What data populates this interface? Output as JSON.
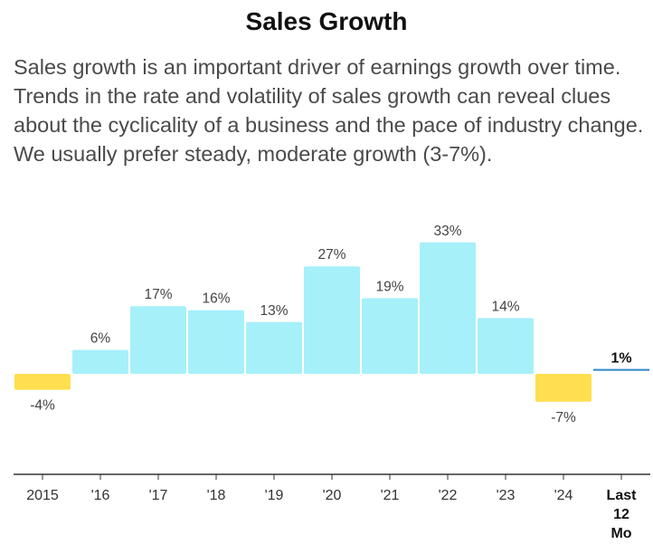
{
  "header": {
    "title": "Sales Growth",
    "description": "Sales growth is an important driver of earnings growth over time. Trends in the rate and volatility of sales growth can reveal clues about the cyclicality of a business and the pace of industry change. We usually prefer steady, moderate growth (3-7%)."
  },
  "chart_data": {
    "type": "bar",
    "categories": [
      "2015",
      "'16",
      "'17",
      "'18",
      "'19",
      "'20",
      "'21",
      "'22",
      "'23",
      "'24",
      "Last 12 Mo"
    ],
    "values": [
      -4,
      6,
      17,
      16,
      13,
      27,
      19,
      33,
      14,
      -7,
      1
    ],
    "data_labels": [
      "-4%",
      "6%",
      "17%",
      "16%",
      "13%",
      "27%",
      "19%",
      "33%",
      "14%",
      "-7%",
      "1%"
    ],
    "ylim": [
      -14,
      33
    ],
    "grid": false,
    "colors": {
      "positive": "#a6f0fa",
      "negative": "#ffdf4f",
      "ttm_line": "#2a86c9",
      "axis": "#333333",
      "label": "#444444"
    }
  }
}
